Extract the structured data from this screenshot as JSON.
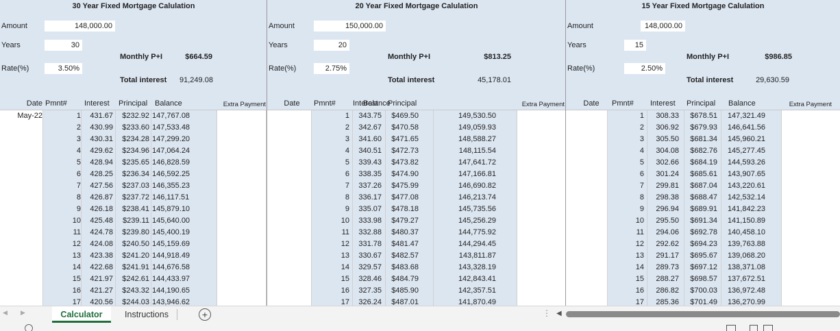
{
  "panels": [
    {
      "title": "30 Year Fixed Mortgage Calulation",
      "amount_label": "Amount",
      "amount": "148,000.00",
      "years_label": "Years",
      "years": "30",
      "rate_label": "Rate(%)",
      "rate": "3.50%",
      "monthly_label": "Monthly P+I",
      "monthly": "$664.59",
      "total_label": "Total interest",
      "total": "91,249.08",
      "columns": {
        "date": "Date",
        "pmnt": "Pmnt#",
        "interest": "Interest",
        "principal": "Principal",
        "balance": "Balance",
        "extra": "Extra Payment"
      },
      "first_date": "May-22",
      "rows": [
        [
          "1",
          "431.67",
          "$232.92",
          "147,767.08"
        ],
        [
          "2",
          "430.99",
          "$233.60",
          "147,533.48"
        ],
        [
          "3",
          "430.31",
          "$234.28",
          "147,299.20"
        ],
        [
          "4",
          "429.62",
          "$234.96",
          "147,064.24"
        ],
        [
          "5",
          "428.94",
          "$235.65",
          "146,828.59"
        ],
        [
          "6",
          "428.25",
          "$236.34",
          "146,592.25"
        ],
        [
          "7",
          "427.56",
          "$237.03",
          "146,355.23"
        ],
        [
          "8",
          "426.87",
          "$237.72",
          "146,117.51"
        ],
        [
          "9",
          "426.18",
          "$238.41",
          "145,879.10"
        ],
        [
          "10",
          "425.48",
          "$239.11",
          "145,640.00"
        ],
        [
          "11",
          "424.78",
          "$239.80",
          "145,400.19"
        ],
        [
          "12",
          "424.08",
          "$240.50",
          "145,159.69"
        ],
        [
          "13",
          "423.38",
          "$241.20",
          "144,918.49"
        ],
        [
          "14",
          "422.68",
          "$241.91",
          "144,676.58"
        ],
        [
          "15",
          "421.97",
          "$242.61",
          "144,433.97"
        ],
        [
          "16",
          "421.27",
          "$243.32",
          "144,190.65"
        ],
        [
          "17",
          "420.56",
          "$244.03",
          "143,946.62"
        ]
      ]
    },
    {
      "title": "20 Year Fixed Mortgage Calulation",
      "amount_label": "Amount",
      "amount": "150,000.00",
      "years_label": "Years",
      "years": "20",
      "rate_label": "Rate(%)",
      "rate": "2.75%",
      "monthly_label": "Monthly P+I",
      "monthly": "$813.25",
      "total_label": "Total interest",
      "total": "45,178.01",
      "columns": {
        "date": "Date",
        "pmnt": "Pmnt#",
        "interest": "Interest",
        "principal": "Principal",
        "balance": "Balance",
        "extra": "Extra Payment"
      },
      "first_date": "",
      "rows": [
        [
          "1",
          "343.75",
          "$469.50",
          "149,530.50"
        ],
        [
          "2",
          "342.67",
          "$470.58",
          "149,059.93"
        ],
        [
          "3",
          "341.60",
          "$471.65",
          "148,588.27"
        ],
        [
          "4",
          "340.51",
          "$472.73",
          "148,115.54"
        ],
        [
          "5",
          "339.43",
          "$473.82",
          "147,641.72"
        ],
        [
          "6",
          "338.35",
          "$474.90",
          "147,166.81"
        ],
        [
          "7",
          "337.26",
          "$475.99",
          "146,690.82"
        ],
        [
          "8",
          "336.17",
          "$477.08",
          "146,213.74"
        ],
        [
          "9",
          "335.07",
          "$478.18",
          "145,735.56"
        ],
        [
          "10",
          "333.98",
          "$479.27",
          "145,256.29"
        ],
        [
          "11",
          "332.88",
          "$480.37",
          "144,775.92"
        ],
        [
          "12",
          "331.78",
          "$481.47",
          "144,294.45"
        ],
        [
          "13",
          "330.67",
          "$482.57",
          "143,811.87"
        ],
        [
          "14",
          "329.57",
          "$483.68",
          "143,328.19"
        ],
        [
          "15",
          "328.46",
          "$484.79",
          "142,843.41"
        ],
        [
          "16",
          "327.35",
          "$485.90",
          "142,357.51"
        ],
        [
          "17",
          "326.24",
          "$487.01",
          "141,870.49"
        ]
      ]
    },
    {
      "title": "15 Year Fixed Mortgage Calulation",
      "amount_label": "Amount",
      "amount": "148,000.00",
      "years_label": "Years",
      "years": "15",
      "rate_label": "Rate(%)",
      "rate": "2.50%",
      "monthly_label": "Monthly P+I",
      "monthly": "$986.85",
      "total_label": "Total interest",
      "total": "29,630.59",
      "columns": {
        "date": "Date",
        "pmnt": "Pmnt#",
        "interest": "Interest",
        "principal": "Principal",
        "balance": "Balance",
        "extra": "Extra Payment"
      },
      "first_date": "",
      "rows": [
        [
          "1",
          "308.33",
          "$678.51",
          "147,321.49"
        ],
        [
          "2",
          "306.92",
          "$679.93",
          "146,641.56"
        ],
        [
          "3",
          "305.50",
          "$681.34",
          "145,960.21"
        ],
        [
          "4",
          "304.08",
          "$682.76",
          "145,277.45"
        ],
        [
          "5",
          "302.66",
          "$684.19",
          "144,593.26"
        ],
        [
          "6",
          "301.24",
          "$685.61",
          "143,907.65"
        ],
        [
          "7",
          "299.81",
          "$687.04",
          "143,220.61"
        ],
        [
          "8",
          "298.38",
          "$688.47",
          "142,532.14"
        ],
        [
          "9",
          "296.94",
          "$689.91",
          "141,842.23"
        ],
        [
          "10",
          "295.50",
          "$691.34",
          "141,150.89"
        ],
        [
          "11",
          "294.06",
          "$692.78",
          "140,458.10"
        ],
        [
          "12",
          "292.62",
          "$694.23",
          "139,763.88"
        ],
        [
          "13",
          "291.17",
          "$695.67",
          "139,068.20"
        ],
        [
          "14",
          "289.73",
          "$697.12",
          "138,371.08"
        ],
        [
          "15",
          "288.27",
          "$698.57",
          "137,672.51"
        ],
        [
          "16",
          "286.82",
          "$700.03",
          "136,972.48"
        ],
        [
          "17",
          "285.36",
          "$701.49",
          "136,270.99"
        ]
      ]
    }
  ],
  "sheet_tabs": {
    "active": "Calculator",
    "other": "Instructions"
  },
  "icons": {
    "prev": "tab-scroll-left-icon",
    "next": "tab-scroll-right-icon",
    "add": "add-sheet-icon",
    "more": "more-options-icon",
    "hscroll": "scroll-left-arrow-icon"
  },
  "colors": {
    "header_fill": "#dce6f1",
    "accent": "#1e6e3c",
    "active_column": "#21a366"
  }
}
